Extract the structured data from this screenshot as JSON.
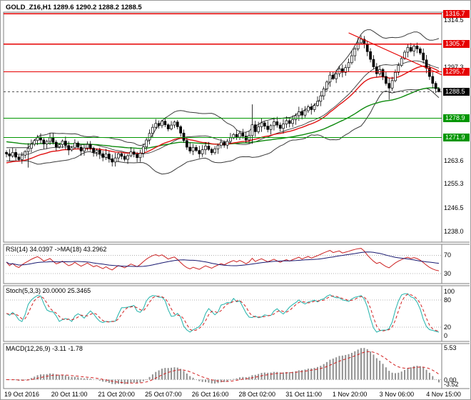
{
  "header": {
    "title_line": "GOLD_Z16,H1 1289.6 1290.2 1288.2 1288.5"
  },
  "colors": {
    "panel_border": "#7e7e7e",
    "bull": "#ffffff",
    "bear": "#000000",
    "candle_outline": "#000000",
    "band": "#3a3a3a",
    "ma_red": "#e01010",
    "ma_green": "#0e8a0e",
    "level_red": "#e60000",
    "level_green": "#009600",
    "level_black": "#000000",
    "current_dash": "#555555",
    "rsi_line": "#cc2222",
    "rsi_ma": "#191970",
    "stoch_main": "#20b2aa",
    "stoch_signal": "#d21f1f",
    "macd_hist": "#909090",
    "macd_signal": "#d21f1f",
    "sublevel_dotted": "#b0b0b0",
    "text": "#000000"
  },
  "time_axis": {
    "labels": [
      "19 Oct 2016",
      "20 Oct 11:00",
      "21 Oct 20:00",
      "25 Oct 07:00",
      "26 Oct 16:00",
      "28 Oct 02:00",
      "31 Oct 11:00",
      "1 Nov 20:00",
      "3 Nov 06:00",
      "4 Nov 15:00"
    ]
  },
  "chart_data": [
    {
      "type": "candlestick",
      "panel": "price",
      "title": "GOLD_Z16,H1",
      "ohlc_header": "1289.6 1290.2 1288.2 1288.5",
      "y_domain": [
        1234.0,
        1317.3
      ],
      "y_ticks": [
        "1314.5",
        "1297.3",
        "1263.6",
        "1255.3",
        "1246.5",
        "1238.0"
      ],
      "price_levels": [
        {
          "label": "1316.7",
          "value": 1316.7,
          "color": "red"
        },
        {
          "label": "1305.7",
          "value": 1305.7,
          "color": "red"
        },
        {
          "label": "1295.7",
          "value": 1295.7,
          "color": "red"
        },
        {
          "label": "1288.5",
          "value": 1288.5,
          "color": "black",
          "current": true
        },
        {
          "label": "1278.9",
          "value": 1278.9,
          "color": "green"
        },
        {
          "label": "1271.9",
          "value": 1271.9,
          "color": "green"
        }
      ],
      "trendline": {
        "x1_bar": 110,
        "price1": 1309.8,
        "x2_bar": 140,
        "price2": 1294.6
      },
      "open_first": 1266.5,
      "closes": [
        1266.0,
        1265.2,
        1266.5,
        1264.8,
        1263.9,
        1265.5,
        1266.8,
        1268.0,
        1269.5,
        1270.8,
        1272.0,
        1271.0,
        1269.6,
        1270.5,
        1271.8,
        1270.2,
        1268.5,
        1269.3,
        1270.6,
        1269.0,
        1267.4,
        1268.2,
        1269.9,
        1268.4,
        1267.0,
        1268.1,
        1269.4,
        1268.0,
        1266.5,
        1267.3,
        1266.0,
        1264.7,
        1265.9,
        1264.2,
        1263.0,
        1264.5,
        1266.0,
        1265.1,
        1264.0,
        1265.3,
        1266.7,
        1265.8,
        1264.6,
        1266.2,
        1268.5,
        1271.0,
        1273.4,
        1275.6,
        1277.0,
        1276.2,
        1277.8,
        1276.5,
        1275.0,
        1276.4,
        1277.5,
        1275.8,
        1273.5,
        1270.8,
        1268.4,
        1267.0,
        1268.3,
        1267.2,
        1266.0,
        1267.5,
        1268.8,
        1267.6,
        1266.4,
        1267.8,
        1269.0,
        1270.2,
        1269.1,
        1270.5,
        1271.8,
        1273.0,
        1272.0,
        1273.5,
        1272.4,
        1271.0,
        1272.6,
        1276.5,
        1274.0,
        1275.8,
        1277.2,
        1276.0,
        1274.8,
        1276.2,
        1277.6,
        1276.4,
        1275.2,
        1276.8,
        1278.0,
        1277.0,
        1278.4,
        1279.8,
        1281.2,
        1280.0,
        1281.6,
        1283.0,
        1282.0,
        1283.5,
        1285.0,
        1287.0,
        1289.5,
        1292.0,
        1294.5,
        1293.2,
        1295.0,
        1296.8,
        1295.5,
        1297.2,
        1299.0,
        1301.5,
        1304.0,
        1306.2,
        1307.5,
        1305.8,
        1303.0,
        1300.2,
        1297.5,
        1295.0,
        1296.5,
        1294.0,
        1291.5,
        1289.8,
        1292.5,
        1295.5,
        1298.0,
        1300.5,
        1302.8,
        1304.5,
        1303.2,
        1305.0,
        1304.0,
        1302.5,
        1300.0,
        1297.0,
        1294.0,
        1291.5,
        1289.6,
        1288.5
      ],
      "wick_base": 0.5,
      "wick_var": 1.4,
      "wick_overrides": {
        "7": {
          "low": 1261.0
        },
        "34": {
          "low": 1261.4
        },
        "79": {
          "high": 1283.9,
          "low": 1269.6
        },
        "114": {
          "high": 1308.9
        },
        "123": {
          "low": 1285.6
        },
        "139": {
          "high": 1290.2,
          "low": 1288.2
        }
      },
      "indicators": {
        "bollinger": {
          "period": 20,
          "dev": 2
        },
        "ma_red_period": 28,
        "ma_red_seed": 1262.5,
        "ma_green_period": 70,
        "ma_green_seed": 1270.5
      }
    },
    {
      "type": "line",
      "panel": "rsi",
      "label": "RSI(14) 34.0397 ->MA(18) 43.2962",
      "levels": [
        70,
        30
      ],
      "y_ticks": [
        "70",
        "30"
      ],
      "y_domain": [
        8,
        94
      ],
      "params": {
        "rsi_period": 14,
        "ma_period": 18
      }
    },
    {
      "type": "line",
      "panel": "stoch",
      "label": "Stoch(5,3,3) 20.0000 25.3465",
      "levels": [
        80,
        20
      ],
      "y_ticks": [
        "100",
        "80",
        "20",
        "0"
      ],
      "y_domain": [
        -12,
        112
      ],
      "params": {
        "k_period": 5,
        "d_period": 3,
        "slowing": 3
      }
    },
    {
      "type": "histogram",
      "panel": "macd",
      "label": "MACD(12,26,9) -3.11 -1.78",
      "y_tick_labels": [
        "5.53",
        "0.00",
        "-3.52"
      ],
      "params": {
        "fast": 12,
        "slow": 26,
        "signal": 9
      }
    }
  ]
}
